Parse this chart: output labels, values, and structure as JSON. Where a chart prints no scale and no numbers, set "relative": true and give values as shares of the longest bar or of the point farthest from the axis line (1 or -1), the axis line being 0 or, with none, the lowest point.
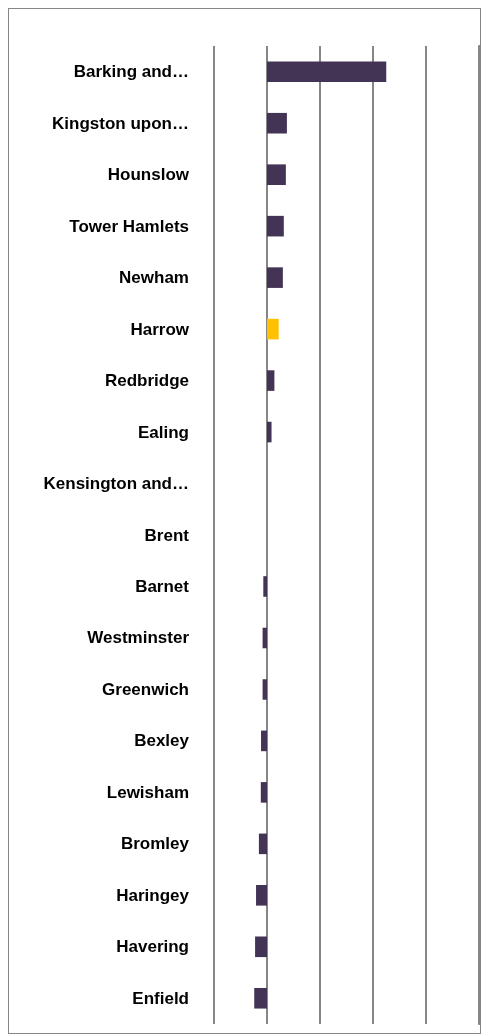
{
  "chart_data": {
    "type": "bar",
    "orientation": "horizontal",
    "relative": true,
    "grid": "x",
    "categories": [
      "Barking and…",
      "Kingston upon…",
      "Hounslow",
      "Tower Hamlets",
      "Newham",
      "Harrow",
      "Redbridge",
      "Ealing",
      "Kensington and…",
      "Brent",
      "Barnet",
      "Westminster",
      "Greenwich",
      "Bexley",
      "Lewisham",
      "Bromley",
      "Haringey",
      "Havering",
      "Enfield"
    ],
    "values": [
      1,
      0.167,
      0.158,
      0.141,
      0.133,
      0.098,
      0.062,
      0.038,
      0,
      0,
      -0.031,
      -0.037,
      -0.037,
      -0.05,
      -0.052,
      -0.068,
      -0.092,
      -0.1,
      -0.107
    ],
    "colors": [
      "#433455",
      "#433455",
      "#433455",
      "#433455",
      "#433455",
      "#ffc000",
      "#433455",
      "#433455",
      "#433455",
      "#433455",
      "#433455",
      "#433455",
      "#433455",
      "#433455",
      "#433455",
      "#433455",
      "#433455",
      "#433455",
      "#433455"
    ]
  }
}
